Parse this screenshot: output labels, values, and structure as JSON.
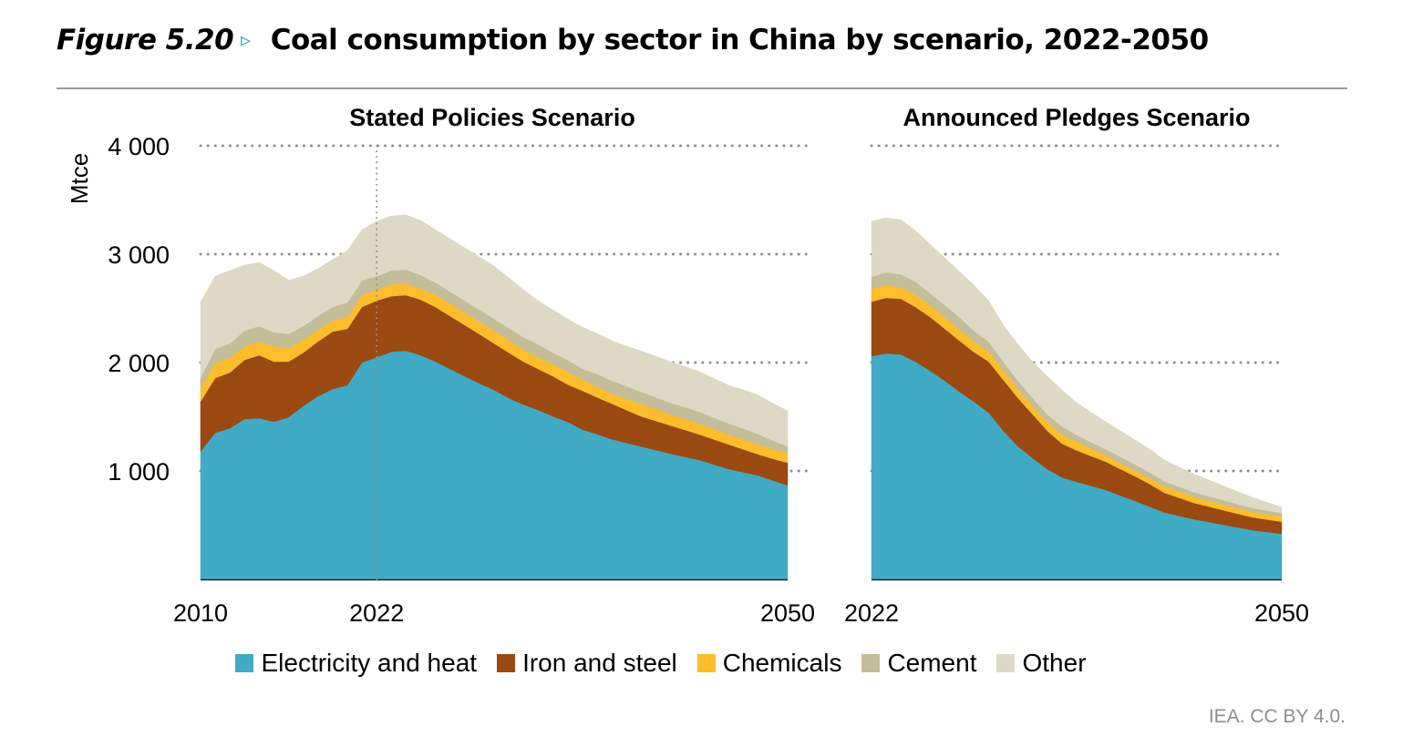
{
  "figure": {
    "number": "Figure 5.20",
    "arrow_icon": "▹",
    "title": "Coal consumption by sector in China by scenario, 2022-2050",
    "credit": "IEA. CC BY 4.0."
  },
  "legend": [
    {
      "name": "Electricity and heat",
      "color": "#41aac4"
    },
    {
      "name": "Iron and steel",
      "color": "#9a4910"
    },
    {
      "name": "Chemicals",
      "color": "#fdbd2c"
    },
    {
      "name": "Cement",
      "color": "#c4bd99"
    },
    {
      "name": "Other",
      "color": "#ddd9c4"
    }
  ],
  "chart_data": [
    {
      "type": "area",
      "stacked": true,
      "title": "Stated Policies Scenario",
      "xlabel": "",
      "ylabel": "Mtce",
      "ylim": [
        0,
        4000
      ],
      "yticks": [
        1000,
        2000,
        3000,
        4000
      ],
      "ytick_labels": [
        "1 000",
        "2 000",
        "3 000",
        "4 000"
      ],
      "xlim": [
        2010,
        2050
      ],
      "xticks": [
        2010,
        2022,
        2050
      ],
      "xtick_labels": [
        "2010",
        "2022",
        "2050"
      ],
      "vline": 2022,
      "grid": "horizontal dotted",
      "x": [
        2010,
        2011,
        2012,
        2013,
        2014,
        2015,
        2016,
        2017,
        2018,
        2019,
        2020,
        2021,
        2022,
        2023,
        2024,
        2025,
        2026,
        2027,
        2028,
        2029,
        2030,
        2031,
        2032,
        2033,
        2034,
        2035,
        2036,
        2037,
        2038,
        2039,
        2040,
        2041,
        2042,
        2043,
        2044,
        2045,
        2046,
        2047,
        2048,
        2049,
        2050
      ],
      "series": [
        {
          "name": "Electricity and heat",
          "values": [
            1180,
            1353,
            1395,
            1479,
            1487,
            1454,
            1496,
            1600,
            1689,
            1756,
            1790,
            2000,
            2050,
            2101,
            2109,
            2067,
            2008,
            1941,
            1874,
            1807,
            1748,
            1672,
            1613,
            1563,
            1504,
            1454,
            1383,
            1340,
            1294,
            1260,
            1227,
            1194,
            1160,
            1130,
            1101,
            1059,
            1017,
            988,
            958,
            912,
            866
          ]
        },
        {
          "name": "Iron and steel",
          "values": [
            460,
            504,
            513,
            546,
            580,
            554,
            512,
            492,
            504,
            530,
            521,
            513,
            521,
            512,
            513,
            513,
            505,
            488,
            471,
            454,
            428,
            420,
            395,
            378,
            370,
            344,
            357,
            340,
            328,
            303,
            277,
            268,
            260,
            248,
            235,
            231,
            227,
            210,
            195,
            200,
            210
          ]
        },
        {
          "name": "Chemicals",
          "values": [
            117,
            143,
            134,
            126,
            126,
            143,
            126,
            118,
            110,
            101,
            109,
            109,
            101,
            110,
            109,
            101,
            117,
            117,
            117,
            117,
            118,
            118,
            110,
            109,
            109,
            118,
            105,
            100,
            92,
            105,
            118,
            110,
            101,
            101,
            101,
            97,
            92,
            92,
            92,
            88,
            84
          ]
        },
        {
          "name": "Cement",
          "values": [
            103,
            126,
            135,
            143,
            143,
            126,
            131,
            126,
            126,
            126,
            135,
            134,
            126,
            126,
            126,
            126,
            109,
            109,
            109,
            109,
            109,
            109,
            117,
            118,
            109,
            109,
            100,
            115,
            120,
            115,
            109,
            108,
            109,
            109,
            109,
            105,
            101,
            101,
            95,
            80,
            67
          ]
        },
        {
          "name": "Other",
          "values": [
            700,
            672,
            672,
            605,
            588,
            572,
            495,
            462,
            437,
            437,
            479,
            471,
            505,
            504,
            504,
            504,
            488,
            488,
            488,
            488,
            488,
            463,
            437,
            403,
            395,
            378,
            383,
            375,
            369,
            370,
            378,
            378,
            378,
            374,
            370,
            361,
            353,
            357,
            361,
            344,
            328
          ]
        }
      ]
    },
    {
      "type": "area",
      "stacked": true,
      "title": "Announced Pledges Scenario",
      "xlabel": "",
      "ylabel": "Mtce",
      "ylim": [
        0,
        4000
      ],
      "yticks": [
        1000,
        2000,
        3000,
        4000
      ],
      "xlim": [
        2022,
        2050
      ],
      "xticks": [
        2022,
        2050
      ],
      "xtick_labels": [
        "2022",
        "2050"
      ],
      "grid": "horizontal dotted",
      "x": [
        2022,
        2023,
        2024,
        2025,
        2026,
        2027,
        2028,
        2029,
        2030,
        2031,
        2032,
        2033,
        2034,
        2035,
        2036,
        2037,
        2038,
        2039,
        2040,
        2041,
        2042,
        2043,
        2044,
        2045,
        2046,
        2047,
        2048,
        2049,
        2050
      ],
      "series": [
        {
          "name": "Electricity and heat",
          "values": [
            2059,
            2084,
            2076,
            2008,
            1924,
            1832,
            1731,
            1638,
            1538,
            1370,
            1227,
            1118,
            1017,
            941,
            900,
            862,
            824,
            773,
            723,
            670,
            617,
            586,
            555,
            530,
            504,
            479,
            454,
            437,
            420
          ]
        },
        {
          "name": "Iron and steel",
          "values": [
            504,
            513,
            512,
            505,
            496,
            479,
            471,
            458,
            470,
            470,
            445,
            403,
            353,
            311,
            290,
            275,
            260,
            244,
            227,
            208,
            181,
            166,
            151,
            142,
            135,
            126,
            118,
            115,
            112
          ]
        },
        {
          "name": "Chemicals",
          "values": [
            118,
            117,
            109,
            117,
            109,
            109,
            101,
            97,
            93,
            93,
            84,
            76,
            84,
            84,
            80,
            69,
            59,
            54,
            50,
            55,
            60,
            58,
            57,
            55,
            53,
            52,
            50,
            49,
            48
          ]
        },
        {
          "name": "Cement",
          "values": [
            109,
            118,
            118,
            118,
            110,
            109,
            117,
            97,
            92,
            75,
            76,
            75,
            67,
            76,
            62,
            59,
            59,
            59,
            59,
            54,
            46,
            45,
            42,
            40,
            38,
            36,
            35,
            34,
            33
          ]
        },
        {
          "name": "Other",
          "values": [
            513,
            504,
            504,
            470,
            453,
            437,
            420,
            424,
            378,
            337,
            336,
            336,
            353,
            336,
            298,
            275,
            252,
            240,
            227,
            213,
            198,
            180,
            168,
            151,
            135,
            116,
            100,
            75,
            53
          ]
        }
      ]
    }
  ]
}
